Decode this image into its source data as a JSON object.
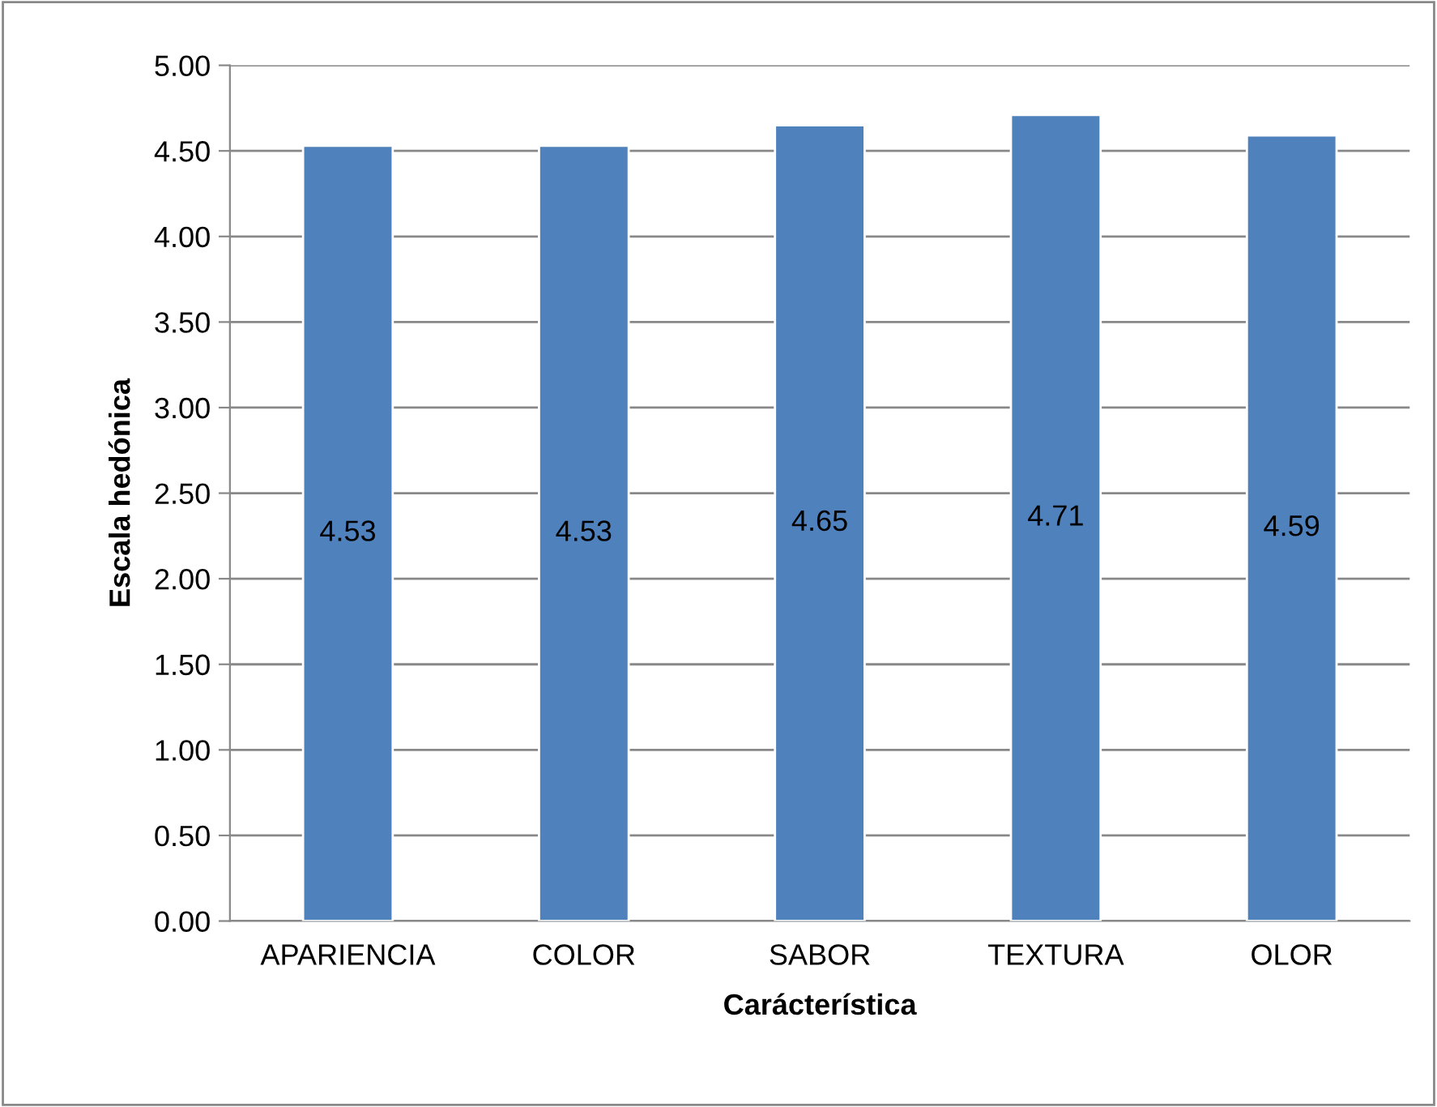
{
  "chart_data": {
    "type": "bar",
    "xlabel": "Carácterística",
    "ylabel": "Escala hedónica",
    "categories": [
      "APARIENCIA",
      "COLOR",
      "SABOR",
      "TEXTURA",
      "OLOR"
    ],
    "values": [
      4.53,
      4.53,
      4.65,
      4.71,
      4.59
    ],
    "color": "#4f81bd",
    "ylim": [
      0,
      5
    ],
    "yticks": [
      {
        "value": 0,
        "label": "0.00"
      },
      {
        "value": 0.5,
        "label": "0.50"
      },
      {
        "value": 1,
        "label": "1.00"
      },
      {
        "value": 1.5,
        "label": "1.50"
      },
      {
        "value": 2,
        "label": "2.00"
      },
      {
        "value": 2.5,
        "label": "2.50"
      },
      {
        "value": 3,
        "label": "3.00"
      },
      {
        "value": 3.5,
        "label": "3.50"
      },
      {
        "value": 4,
        "label": "4.00"
      },
      {
        "value": 4.5,
        "label": "4.50"
      },
      {
        "value": 5,
        "label": "5.00"
      }
    ],
    "grid": "y",
    "data_labels": true,
    "legend": false
  }
}
